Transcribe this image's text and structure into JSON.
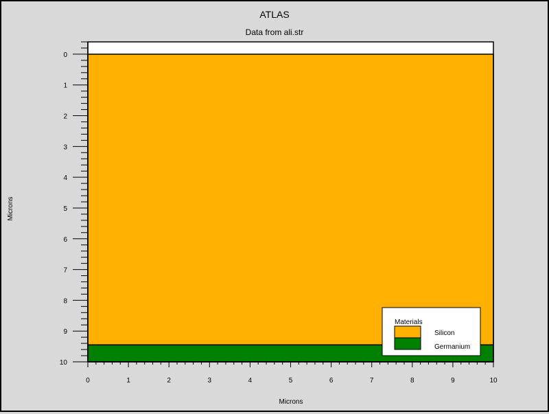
{
  "chart_data": {
    "type": "material-structure",
    "title": "ATLAS",
    "subtitle": "Data from ali.str",
    "xlabel": "Microns",
    "ylabel": "Microns",
    "xlim": [
      0,
      10
    ],
    "ylim": [
      -0.4,
      10
    ],
    "y_inverted": true,
    "x_ticks": [
      "0",
      "1",
      "2",
      "3",
      "4",
      "5",
      "6",
      "7",
      "8",
      "9",
      "10"
    ],
    "y_ticks": [
      "0",
      "1",
      "2",
      "3",
      "4",
      "5",
      "6",
      "7",
      "8",
      "9",
      "10"
    ],
    "regions": [
      {
        "name": "Silicon",
        "x": [
          0,
          10
        ],
        "y": [
          0,
          9.45
        ],
        "color": "#ffb000"
      },
      {
        "name": "Germanium",
        "x": [
          0,
          10
        ],
        "y": [
          9.45,
          10
        ],
        "color": "#008000"
      }
    ],
    "legend": {
      "title": "Materials",
      "position": "bottom-right",
      "entries": [
        {
          "label": "Silicon",
          "color": "#ffb000"
        },
        {
          "label": "Germanium",
          "color": "#008000"
        }
      ]
    }
  }
}
